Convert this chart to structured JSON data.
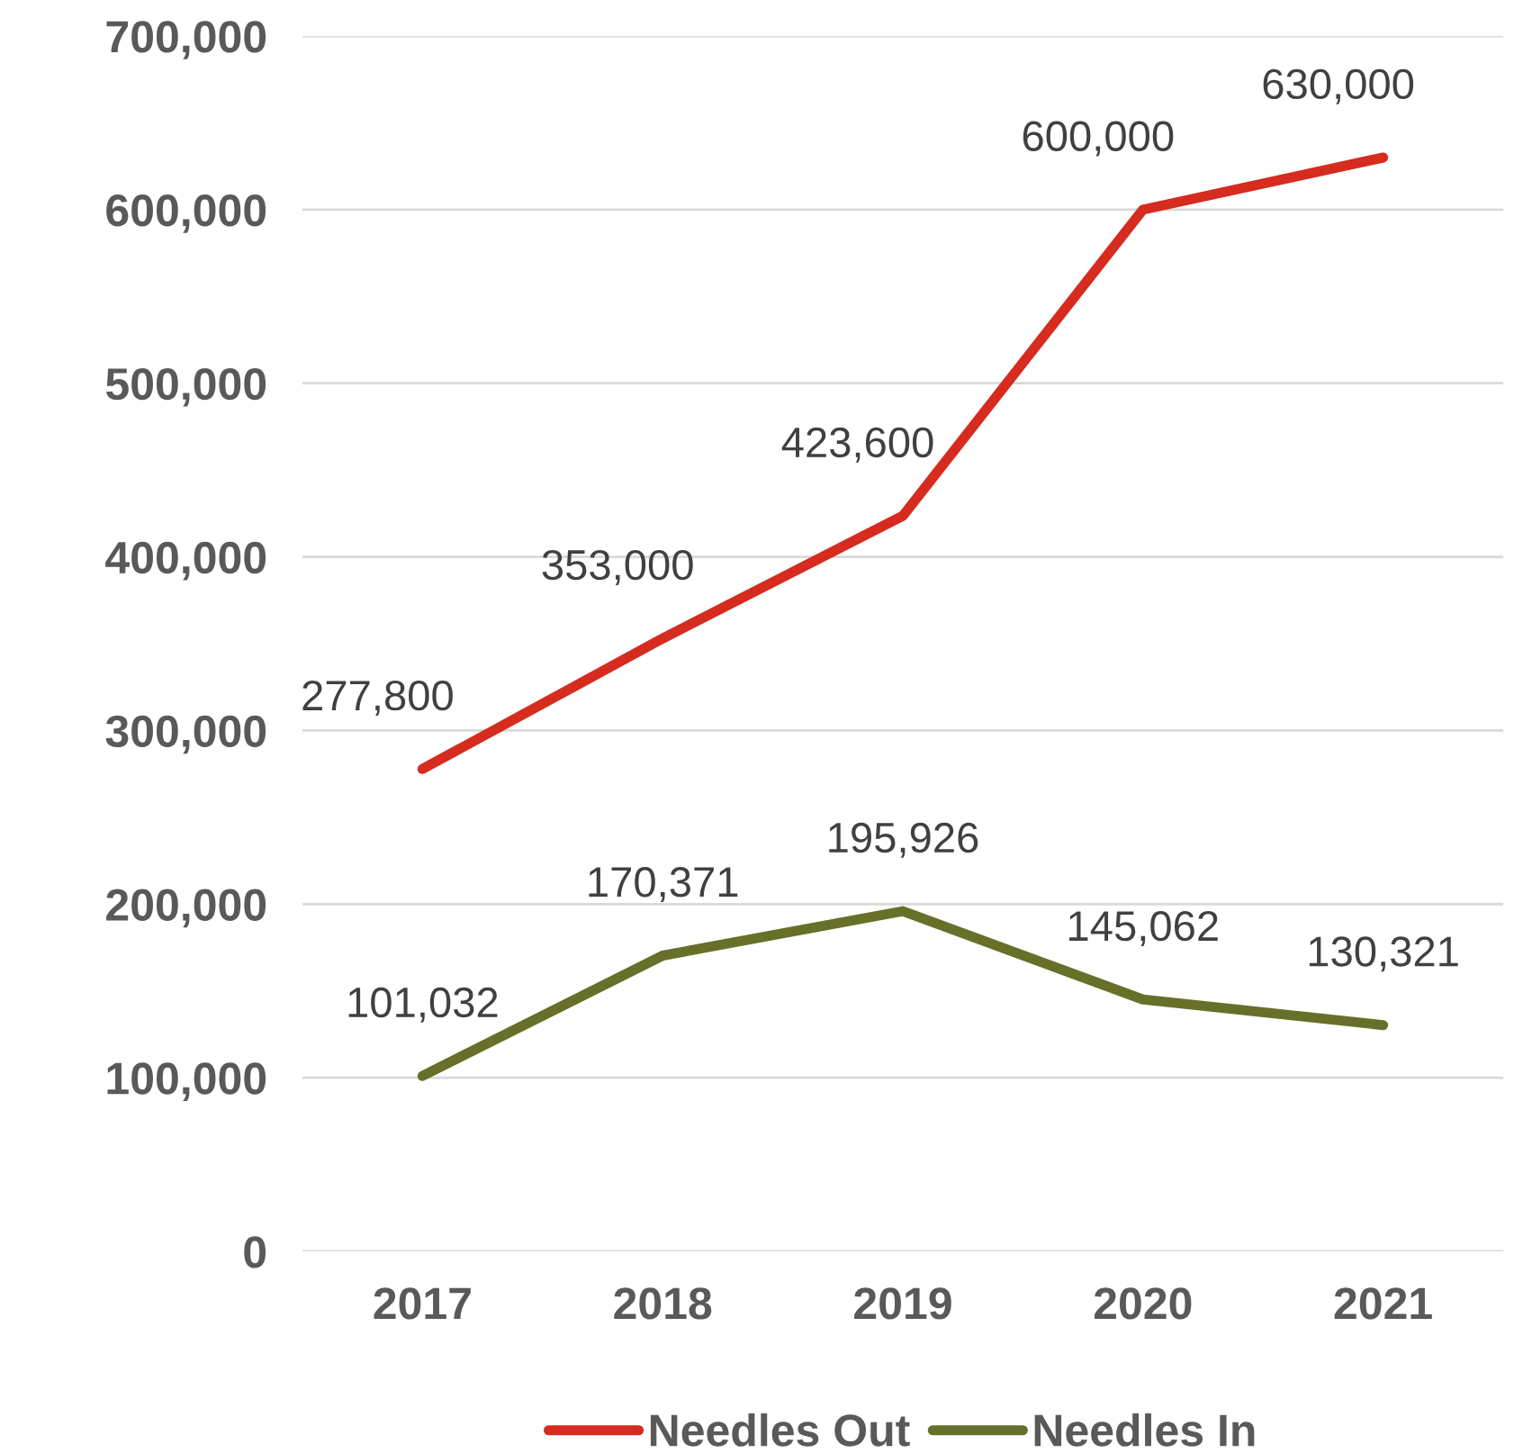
{
  "chart_data": {
    "type": "line",
    "categories": [
      "2017",
      "2018",
      "2019",
      "2020",
      "2021"
    ],
    "series": [
      {
        "name": "Needles Out",
        "color": "#d62b1f",
        "values": [
          277800,
          353000,
          423600,
          600000,
          630000
        ],
        "value_labels": [
          "277,800",
          "353,000",
          "423,600",
          "600,000",
          "630,000"
        ]
      },
      {
        "name": "Needles In",
        "color": "#677029",
        "values": [
          101032,
          170371,
          195926,
          145062,
          130321
        ],
        "value_labels": [
          "101,032",
          "170,371",
          "195,926",
          "145,062",
          "130,321"
        ]
      }
    ],
    "ylim": [
      0,
      700000
    ],
    "yticks": [
      {
        "value": 0,
        "label": "0"
      },
      {
        "value": 100000,
        "label": "100,000"
      },
      {
        "value": 200000,
        "label": "200,000"
      },
      {
        "value": 300000,
        "label": "300,000"
      },
      {
        "value": 400000,
        "label": "400,000"
      },
      {
        "value": 500000,
        "label": "500,000"
      },
      {
        "value": 600000,
        "label": "600,000"
      },
      {
        "value": 700000,
        "label": "700,000"
      }
    ],
    "grid": "y",
    "legend": "bottom",
    "marker": "none",
    "line_style": "solid"
  }
}
